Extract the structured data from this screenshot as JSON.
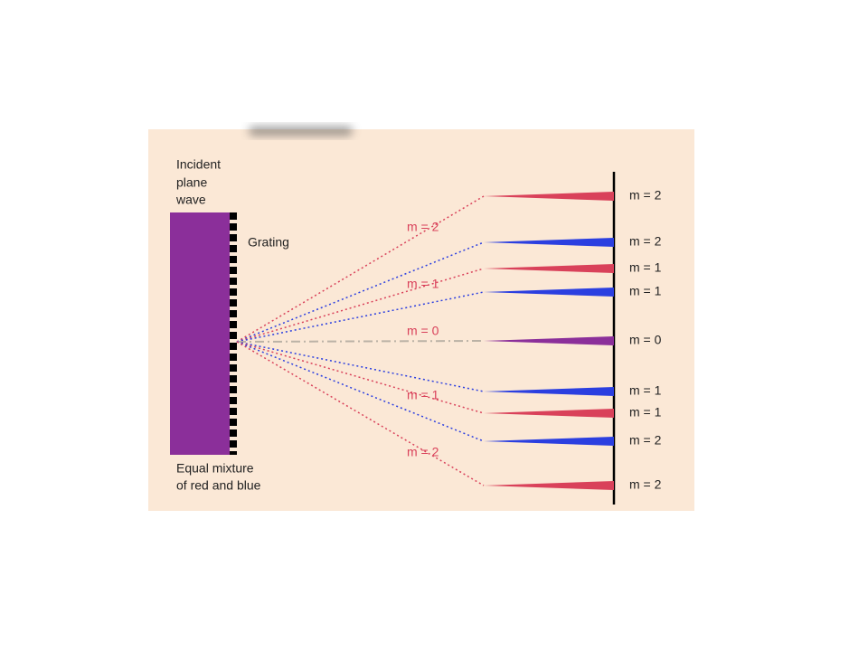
{
  "incident_label": [
    "Incident",
    "plane",
    "wave"
  ],
  "grating_label": "Grating",
  "mixture_label": [
    "Equal mixture",
    "of red and blue"
  ],
  "beam_labels": [
    "m = 2",
    "m = 1",
    "m = 0",
    "m = 1",
    "m = 2"
  ],
  "screen_labels": [
    "m = 2",
    "m = 2",
    "m = 1",
    "m = 1",
    "m = 0",
    "m = 1",
    "m = 1",
    "m = 2",
    "m = 2"
  ]
}
